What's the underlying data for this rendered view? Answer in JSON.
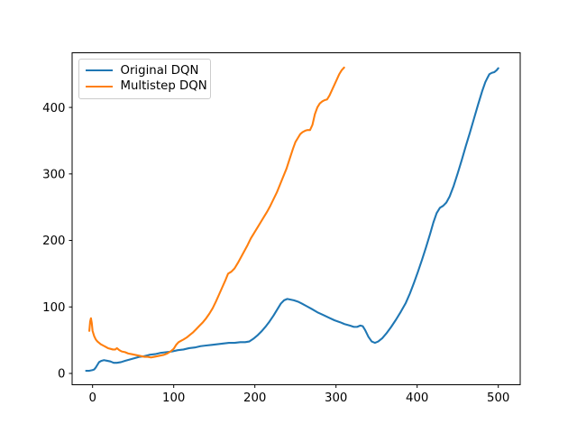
{
  "figure": {
    "background_color": "#ffffff",
    "axis_color": "#000000",
    "legend_border_color": "#cccccc"
  },
  "chart_data": {
    "type": "line",
    "title": "",
    "xlabel": "",
    "ylabel": "",
    "grid": false,
    "legend_position": "upper left",
    "x_ticks": [
      0,
      100,
      200,
      300,
      400,
      500
    ],
    "y_ticks": [
      0,
      100,
      200,
      300,
      400
    ],
    "xlim": [
      -25.2,
      527.0
    ],
    "ylim": [
      -17.0,
      482.2
    ],
    "series": [
      {
        "name": "Original DQN",
        "color": "#1f77b4",
        "points": [
          [
            -8,
            4
          ],
          [
            -4,
            4
          ],
          [
            0,
            5
          ],
          [
            2,
            6
          ],
          [
            4,
            9
          ],
          [
            6,
            13
          ],
          [
            8,
            17
          ],
          [
            11,
            19
          ],
          [
            14,
            20
          ],
          [
            18,
            19
          ],
          [
            22,
            18
          ],
          [
            26,
            16
          ],
          [
            30,
            16
          ],
          [
            35,
            17
          ],
          [
            40,
            19
          ],
          [
            46,
            21
          ],
          [
            52,
            23
          ],
          [
            58,
            25
          ],
          [
            64,
            26
          ],
          [
            70,
            28
          ],
          [
            77,
            29
          ],
          [
            84,
            31
          ],
          [
            91,
            32
          ],
          [
            98,
            33
          ],
          [
            105,
            35
          ],
          [
            112,
            36
          ],
          [
            119,
            38
          ],
          [
            126,
            39
          ],
          [
            133,
            41
          ],
          [
            140,
            42
          ],
          [
            147,
            43
          ],
          [
            154,
            44
          ],
          [
            161,
            45
          ],
          [
            168,
            46
          ],
          [
            175,
            46
          ],
          [
            182,
            47
          ],
          [
            188,
            47
          ],
          [
            193,
            48
          ],
          [
            198,
            52
          ],
          [
            203,
            57
          ],
          [
            208,
            63
          ],
          [
            213,
            70
          ],
          [
            218,
            78
          ],
          [
            223,
            87
          ],
          [
            228,
            97
          ],
          [
            232,
            105
          ],
          [
            236,
            110
          ],
          [
            240,
            112
          ],
          [
            244,
            111
          ],
          [
            248,
            110
          ],
          [
            253,
            108
          ],
          [
            258,
            105
          ],
          [
            264,
            101
          ],
          [
            270,
            97
          ],
          [
            277,
            92
          ],
          [
            284,
            88
          ],
          [
            291,
            84
          ],
          [
            298,
            80
          ],
          [
            305,
            77
          ],
          [
            311,
            74
          ],
          [
            317,
            72
          ],
          [
            322,
            70
          ],
          [
            326,
            70
          ],
          [
            330,
            72
          ],
          [
            333,
            71
          ],
          [
            336,
            65
          ],
          [
            340,
            55
          ],
          [
            344,
            48
          ],
          [
            348,
            46
          ],
          [
            352,
            48
          ],
          [
            357,
            53
          ],
          [
            362,
            60
          ],
          [
            368,
            70
          ],
          [
            374,
            81
          ],
          [
            380,
            93
          ],
          [
            386,
            106
          ],
          [
            391,
            120
          ],
          [
            396,
            136
          ],
          [
            401,
            153
          ],
          [
            406,
            171
          ],
          [
            411,
            190
          ],
          [
            416,
            210
          ],
          [
            420,
            227
          ],
          [
            424,
            241
          ],
          [
            428,
            249
          ],
          [
            432,
            252
          ],
          [
            436,
            257
          ],
          [
            440,
            266
          ],
          [
            445,
            282
          ],
          [
            450,
            301
          ],
          [
            455,
            321
          ],
          [
            460,
            342
          ],
          [
            465,
            362
          ],
          [
            470,
            383
          ],
          [
            475,
            404
          ],
          [
            480,
            424
          ],
          [
            484,
            438
          ],
          [
            486,
            443
          ],
          [
            489,
            450
          ],
          [
            492,
            452
          ],
          [
            495,
            453
          ],
          [
            498,
            456
          ],
          [
            500,
            459
          ]
        ]
      },
      {
        "name": "Multistep DQN",
        "color": "#ff7f0e",
        "points": [
          [
            -4,
            64
          ],
          [
            -3,
            78
          ],
          [
            -2,
            83
          ],
          [
            -1,
            76
          ],
          [
            0,
            64
          ],
          [
            2,
            56
          ],
          [
            4,
            51
          ],
          [
            6,
            48
          ],
          [
            8,
            46
          ],
          [
            10,
            44
          ],
          [
            13,
            42
          ],
          [
            16,
            40
          ],
          [
            19,
            38
          ],
          [
            22,
            37
          ],
          [
            25,
            36
          ],
          [
            28,
            36
          ],
          [
            30,
            38
          ],
          [
            33,
            35
          ],
          [
            36,
            33
          ],
          [
            40,
            32
          ],
          [
            44,
            30
          ],
          [
            48,
            29
          ],
          [
            52,
            28
          ],
          [
            56,
            27
          ],
          [
            60,
            26
          ],
          [
            64,
            25
          ],
          [
            68,
            25
          ],
          [
            72,
            24
          ],
          [
            76,
            25
          ],
          [
            80,
            26
          ],
          [
            84,
            27
          ],
          [
            88,
            28
          ],
          [
            92,
            30
          ],
          [
            96,
            33
          ],
          [
            100,
            37
          ],
          [
            103,
            43
          ],
          [
            106,
            47
          ],
          [
            109,
            49
          ],
          [
            112,
            51
          ],
          [
            116,
            54
          ],
          [
            120,
            58
          ],
          [
            124,
            62
          ],
          [
            128,
            67
          ],
          [
            132,
            72
          ],
          [
            136,
            77
          ],
          [
            140,
            83
          ],
          [
            144,
            90
          ],
          [
            148,
            98
          ],
          [
            152,
            108
          ],
          [
            156,
            119
          ],
          [
            160,
            130
          ],
          [
            164,
            141
          ],
          [
            167,
            150
          ],
          [
            171,
            153
          ],
          [
            175,
            158
          ],
          [
            179,
            166
          ],
          [
            183,
            175
          ],
          [
            187,
            184
          ],
          [
            191,
            193
          ],
          [
            195,
            203
          ],
          [
            199,
            211
          ],
          [
            203,
            219
          ],
          [
            207,
            227
          ],
          [
            211,
            235
          ],
          [
            215,
            243
          ],
          [
            219,
            252
          ],
          [
            223,
            262
          ],
          [
            227,
            272
          ],
          [
            231,
            284
          ],
          [
            235,
            296
          ],
          [
            239,
            308
          ],
          [
            243,
            323
          ],
          [
            247,
            338
          ],
          [
            250,
            348
          ],
          [
            253,
            354
          ],
          [
            256,
            360
          ],
          [
            259,
            363
          ],
          [
            262,
            365
          ],
          [
            265,
            366
          ],
          [
            268,
            366
          ],
          [
            271,
            374
          ],
          [
            274,
            390
          ],
          [
            277,
            400
          ],
          [
            280,
            406
          ],
          [
            283,
            409
          ],
          [
            286,
            411
          ],
          [
            289,
            412
          ],
          [
            292,
            418
          ],
          [
            295,
            426
          ],
          [
            298,
            434
          ],
          [
            301,
            442
          ],
          [
            304,
            450
          ],
          [
            307,
            456
          ],
          [
            310,
            460
          ]
        ]
      }
    ]
  }
}
